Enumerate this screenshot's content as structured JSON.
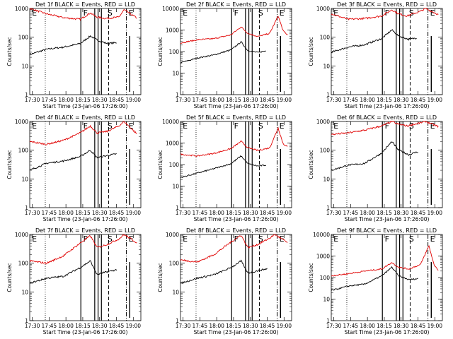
{
  "figure": {
    "xlabel": "Start Time (23-Jan-06 17:26:00)",
    "ylabel": "Counts/sec",
    "x_tick_labels": [
      "17:30",
      "17:45",
      "18:00",
      "18:15",
      "18:30",
      "18:45",
      "19:00"
    ],
    "y_tick_labels": [
      "1",
      "10",
      "100",
      "1000",
      "10000"
    ],
    "colors": {
      "events": "#000000",
      "lld": "#e00000",
      "axes": "#000000"
    }
  },
  "chart_data": [
    {
      "type": "line",
      "title": "Det 1f BLACK = Events, RED = LLD",
      "x": [
        "17:30",
        "17:45",
        "18:00",
        "18:15",
        "18:30",
        "18:45",
        "19:00"
      ],
      "ylim": [
        1,
        1000
      ],
      "yscale": "log",
      "y_tick_labels": [
        "1",
        "10",
        "100",
        "1000"
      ],
      "flags": [
        "E",
        "F",
        "S",
        "E"
      ],
      "series": [
        {
          "name": "BLACK = Events",
          "color": "#000000",
          "points": [
            [
              0,
              25
            ],
            [
              1,
              38
            ],
            [
              2,
              45
            ],
            [
              3,
              60
            ],
            [
              3.6,
              110
            ],
            [
              4,
              80
            ],
            [
              4.6,
              60
            ],
            [
              5.2,
              65
            ]
          ]
        },
        {
          "name": "RED = LLD",
          "color": "#e00000",
          "points": [
            [
              0,
              1000
            ],
            [
              1,
              650
            ],
            [
              2,
              480
            ],
            [
              3,
              420
            ],
            [
              3.6,
              700
            ],
            [
              4,
              500
            ],
            [
              4.5,
              450
            ],
            [
              5.3,
              500
            ],
            [
              5.6,
              900
            ],
            [
              6.4,
              450
            ]
          ]
        }
      ]
    },
    {
      "type": "line",
      "title": "Det 2f BLACK = Events, RED = LLD",
      "x": [
        "17:30",
        "17:45",
        "18:00",
        "18:15",
        "18:30",
        "18:45",
        "19:00"
      ],
      "ylim": [
        1,
        10000
      ],
      "yscale": "log",
      "y_tick_labels": [
        "1",
        "10",
        "100",
        "1000",
        "10000"
      ],
      "flags": [
        "E",
        "F",
        "S",
        "E"
      ],
      "series": [
        {
          "name": "BLACK = Events",
          "color": "#000000",
          "points": [
            [
              0,
              30
            ],
            [
              1,
              50
            ],
            [
              2,
              70
            ],
            [
              3,
              120
            ],
            [
              3.6,
              280
            ],
            [
              4,
              110
            ],
            [
              4.6,
              90
            ],
            [
              5.1,
              110
            ]
          ]
        },
        {
          "name": "RED = LLD",
          "color": "#e00000",
          "points": [
            [
              0,
              250
            ],
            [
              1,
              350
            ],
            [
              2,
              400
            ],
            [
              3,
              600
            ],
            [
              3.6,
              1400
            ],
            [
              4,
              700
            ],
            [
              4.6,
              500
            ],
            [
              5.3,
              700
            ],
            [
              5.8,
              4500
            ],
            [
              6.1,
              900
            ],
            [
              6.4,
              550
            ]
          ]
        }
      ]
    },
    {
      "type": "line",
      "title": "Det 3f BLACK = Events, RED = LLD",
      "x": [
        "17:30",
        "17:45",
        "18:00",
        "18:15",
        "18:30",
        "18:45",
        "19:00"
      ],
      "ylim": [
        1,
        1000
      ],
      "yscale": "log",
      "y_tick_labels": [
        "1",
        "10",
        "100",
        "1000"
      ],
      "flags": [
        "E",
        "F",
        "S",
        "E"
      ],
      "series": [
        {
          "name": "BLACK = Events",
          "color": "#000000",
          "points": [
            [
              0,
              30
            ],
            [
              1,
              45
            ],
            [
              2,
              55
            ],
            [
              3,
              90
            ],
            [
              3.6,
              180
            ],
            [
              4,
              110
            ],
            [
              4.6,
              85
            ],
            [
              5.1,
              95
            ]
          ]
        },
        {
          "name": "RED = LLD",
          "color": "#e00000",
          "points": [
            [
              0,
              650
            ],
            [
              1,
              420
            ],
            [
              2,
              450
            ],
            [
              3,
              550
            ],
            [
              3.6,
              900
            ],
            [
              4,
              650
            ],
            [
              4.5,
              550
            ],
            [
              5.3,
              800
            ],
            [
              5.6,
              1000
            ],
            [
              6.4,
              600
            ]
          ]
        }
      ]
    },
    {
      "type": "line",
      "title": "Det 4f BLACK = Events, RED = LLD",
      "x": [
        "17:30",
        "17:45",
        "18:00",
        "18:15",
        "18:30",
        "18:45",
        "19:00"
      ],
      "ylim": [
        1,
        1000
      ],
      "yscale": "log",
      "y_tick_labels": [
        "1",
        "10",
        "100",
        "1000"
      ],
      "flags": [
        "E",
        "F",
        "S",
        "E"
      ],
      "series": [
        {
          "name": "BLACK = Events",
          "color": "#000000",
          "points": [
            [
              0,
              20
            ],
            [
              1,
              35
            ],
            [
              2,
              42
            ],
            [
              3,
              60
            ],
            [
              3.6,
              100
            ],
            [
              4,
              55
            ],
            [
              4.6,
              65
            ],
            [
              5.2,
              75
            ]
          ]
        },
        {
          "name": "RED = LLD",
          "color": "#e00000",
          "points": [
            [
              0,
              200
            ],
            [
              1,
              160
            ],
            [
              2,
              220
            ],
            [
              3,
              400
            ],
            [
              3.6,
              700
            ],
            [
              4,
              400
            ],
            [
              4.6,
              450
            ],
            [
              5.3,
              700
            ],
            [
              5.6,
              1000
            ],
            [
              6.4,
              350
            ]
          ]
        }
      ]
    },
    {
      "type": "line",
      "title": "Det 5f BLACK = Events, RED = LLD",
      "x": [
        "17:30",
        "17:45",
        "18:00",
        "18:15",
        "18:30",
        "18:45",
        "19:00"
      ],
      "ylim": [
        1,
        10000
      ],
      "yscale": "log",
      "y_tick_labels": [
        "1",
        "10",
        "100",
        "1000",
        "10000"
      ],
      "flags": [
        "E",
        "F",
        "S",
        "E"
      ],
      "series": [
        {
          "name": "BLACK = Events",
          "color": "#000000",
          "points": [
            [
              0,
              25
            ],
            [
              1,
              40
            ],
            [
              2,
              65
            ],
            [
              3,
              110
            ],
            [
              3.6,
              250
            ],
            [
              4,
              110
            ],
            [
              4.6,
              85
            ],
            [
              5.1,
              95
            ]
          ]
        },
        {
          "name": "RED = LLD",
          "color": "#e00000",
          "points": [
            [
              0,
              300
            ],
            [
              1,
              250
            ],
            [
              2,
              330
            ],
            [
              3,
              550
            ],
            [
              3.6,
              1200
            ],
            [
              4,
              600
            ],
            [
              4.6,
              450
            ],
            [
              5.3,
              600
            ],
            [
              5.8,
              5000
            ],
            [
              6.1,
              900
            ],
            [
              6.4,
              650
            ]
          ]
        }
      ]
    },
    {
      "type": "line",
      "title": "Det 6f BLACK = Events, RED = LLD",
      "x": [
        "17:30",
        "17:45",
        "18:00",
        "18:15",
        "18:30",
        "18:45",
        "19:00"
      ],
      "ylim": [
        1,
        1000
      ],
      "yscale": "log",
      "y_tick_labels": [
        "1",
        "10",
        "100",
        "1000"
      ],
      "flags": [
        "E",
        "F",
        "S",
        "E"
      ],
      "series": [
        {
          "name": "BLACK = Events",
          "color": "#000000",
          "points": [
            [
              0,
              20
            ],
            [
              1,
              30
            ],
            [
              2,
              35
            ],
            [
              3,
              80
            ],
            [
              3.6,
              200
            ],
            [
              4,
              100
            ],
            [
              4.6,
              70
            ],
            [
              5.2,
              90
            ]
          ]
        },
        {
          "name": "RED = LLD",
          "color": "#e00000",
          "points": [
            [
              0,
              350
            ],
            [
              1,
              400
            ],
            [
              2,
              500
            ],
            [
              3,
              700
            ],
            [
              3.6,
              1000
            ],
            [
              4,
              800
            ],
            [
              4.5,
              700
            ],
            [
              5.3,
              900
            ],
            [
              5.6,
              1000
            ],
            [
              6.4,
              650
            ]
          ]
        }
      ]
    },
    {
      "type": "line",
      "title": "Det 7f BLACK = Events, RED = LLD",
      "x": [
        "17:30",
        "17:45",
        "18:00",
        "18:15",
        "18:30",
        "18:45",
        "19:00"
      ],
      "ylim": [
        1,
        1000
      ],
      "yscale": "log",
      "y_tick_labels": [
        "1",
        "10",
        "100",
        "1000"
      ],
      "flags": [
        "E",
        "F",
        "S",
        "E"
      ],
      "series": [
        {
          "name": "BLACK = Events",
          "color": "#000000",
          "points": [
            [
              0,
              20
            ],
            [
              1,
              30
            ],
            [
              2,
              35
            ],
            [
              3,
              70
            ],
            [
              3.6,
              120
            ],
            [
              4,
              40
            ],
            [
              4.6,
              50
            ],
            [
              5.2,
              60
            ]
          ]
        },
        {
          "name": "RED = LLD",
          "color": "#e00000",
          "points": [
            [
              0,
              120
            ],
            [
              1,
              100
            ],
            [
              2,
              180
            ],
            [
              3,
              500
            ],
            [
              3.6,
              900
            ],
            [
              4,
              350
            ],
            [
              4.6,
              450
            ],
            [
              5.3,
              700
            ],
            [
              5.6,
              1000
            ],
            [
              6.4,
              500
            ]
          ]
        }
      ]
    },
    {
      "type": "line",
      "title": "Det 8f BLACK = Events, RED = LLD",
      "x": [
        "17:30",
        "17:45",
        "18:00",
        "18:15",
        "18:30",
        "18:45",
        "19:00"
      ],
      "ylim": [
        1,
        1000
      ],
      "yscale": "log",
      "y_tick_labels": [
        "1",
        "10",
        "100",
        "1000"
      ],
      "flags": [
        "E",
        "F",
        "S",
        "E"
      ],
      "series": [
        {
          "name": "BLACK = Events",
          "color": "#000000",
          "points": [
            [
              0,
              20
            ],
            [
              1,
              30
            ],
            [
              2,
              40
            ],
            [
              3,
              70
            ],
            [
              3.6,
              120
            ],
            [
              4,
              45
            ],
            [
              4.6,
              55
            ],
            [
              5.2,
              65
            ]
          ]
        },
        {
          "name": "RED = LLD",
          "color": "#e00000",
          "points": [
            [
              0,
              130
            ],
            [
              1,
              110
            ],
            [
              2,
              200
            ],
            [
              3,
              550
            ],
            [
              3.6,
              950
            ],
            [
              4,
              350
            ],
            [
              4.6,
              450
            ],
            [
              5.3,
              750
            ],
            [
              5.6,
              1000
            ],
            [
              6.4,
              500
            ]
          ]
        }
      ]
    },
    {
      "type": "line",
      "title": "Det 9f BLACK = Events, RED = LLD",
      "x": [
        "17:30",
        "17:45",
        "18:00",
        "18:15",
        "18:30",
        "18:45",
        "19:00"
      ],
      "ylim": [
        1,
        10000
      ],
      "yscale": "log",
      "y_tick_labels": [
        "1",
        "10",
        "100",
        "1000",
        "10000"
      ],
      "flags": [
        "E",
        "F",
        "S",
        "E"
      ],
      "series": [
        {
          "name": "BLACK = Events",
          "color": "#000000",
          "points": [
            [
              0,
              25
            ],
            [
              1,
              40
            ],
            [
              2,
              50
            ],
            [
              3,
              120
            ],
            [
              3.6,
              300
            ],
            [
              4,
              120
            ],
            [
              4.6,
              80
            ],
            [
              5.2,
              90
            ]
          ]
        },
        {
          "name": "RED = LLD",
          "color": "#e00000",
          "points": [
            [
              0,
              120
            ],
            [
              1,
              150
            ],
            [
              2,
              200
            ],
            [
              3,
              250
            ],
            [
              3.6,
              500
            ],
            [
              4,
              300
            ],
            [
              4.6,
              250
            ],
            [
              5.3,
              400
            ],
            [
              5.8,
              3000
            ],
            [
              6.1,
              400
            ],
            [
              6.4,
              200
            ]
          ]
        }
      ]
    }
  ]
}
